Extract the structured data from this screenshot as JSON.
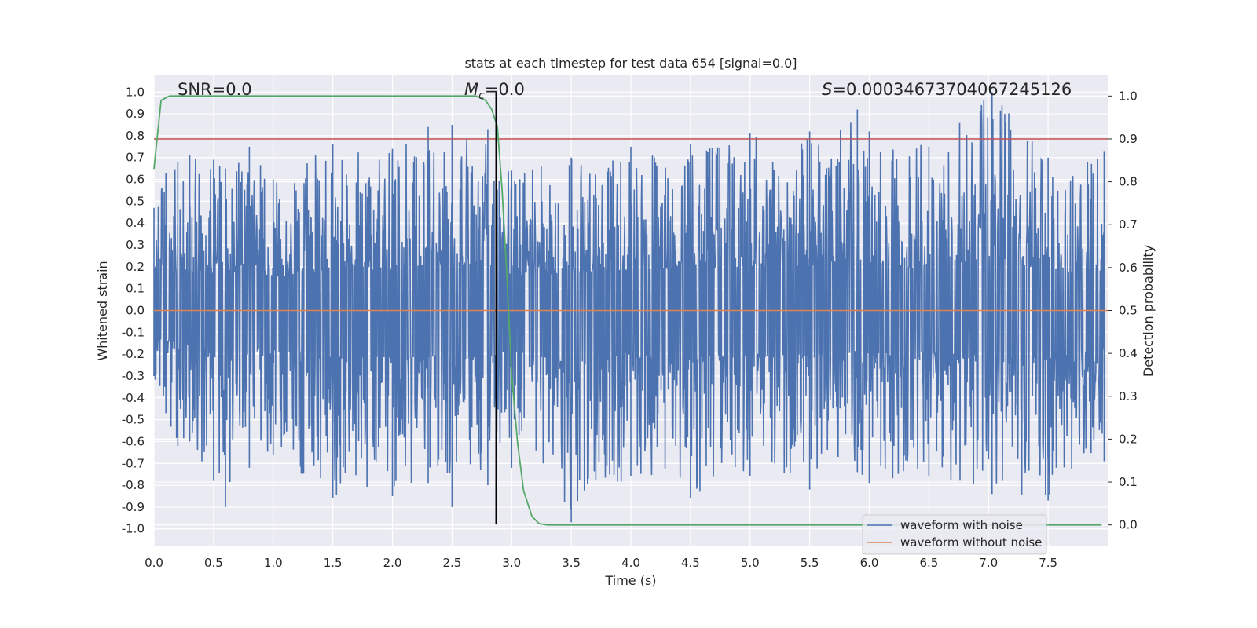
{
  "chart_data": {
    "type": "line",
    "title": "stats at each timestep for test data 654 [signal=0.0]",
    "xlabel": "Time (s)",
    "ylabel": "Whitened strain",
    "y2label": "Detection probability",
    "xlim": [
      0,
      8
    ],
    "ylim": [
      -1.08,
      1.08
    ],
    "y2lim": [
      -0.05,
      1.05
    ],
    "xticks": [
      "0.0",
      "0.5",
      "1.0",
      "1.5",
      "2.0",
      "2.5",
      "3.0",
      "3.5",
      "4.0",
      "4.5",
      "5.0",
      "5.5",
      "6.0",
      "6.5",
      "7.0",
      "7.5"
    ],
    "yticks": [
      "-1.0",
      "-0.9",
      "-0.8",
      "-0.7",
      "-0.6",
      "-0.5",
      "-0.4",
      "-0.3",
      "-0.2",
      "-0.1",
      "0.0",
      "0.1",
      "0.2",
      "0.3",
      "0.4",
      "0.5",
      "0.6",
      "0.7",
      "0.8",
      "0.9",
      "1.0"
    ],
    "y2ticks": [
      "0.0",
      "0.1",
      "0.2",
      "0.3",
      "0.4",
      "0.5",
      "0.6",
      "0.7",
      "0.8",
      "0.9",
      "1.0"
    ],
    "grid": true,
    "legend_position": "lower-right",
    "annotations": {
      "snr": "SNR=0.0",
      "mc_symbol": "M",
      "mc_sub": "c",
      "mc_value": "=0.0",
      "s_symbol": "S",
      "s_value": "=0.00034673704067245126"
    },
    "series": [
      {
        "name": "waveform with noise",
        "axis": "left",
        "color": "#4c72b0",
        "description_kind": "noise",
        "envelope_points": [
          [
            0.0,
            0.47,
            -0.3
          ],
          [
            0.1,
            0.63,
            -0.47
          ],
          [
            0.2,
            0.68,
            -0.62
          ],
          [
            0.3,
            0.71,
            -0.6
          ],
          [
            0.5,
            0.69,
            -0.78
          ],
          [
            0.6,
            0.65,
            -0.9
          ],
          [
            0.8,
            0.75,
            -0.72
          ],
          [
            1.0,
            0.6,
            -0.66
          ],
          [
            1.5,
            0.76,
            -0.86
          ],
          [
            2.0,
            0.74,
            -0.85
          ],
          [
            2.3,
            0.84,
            -0.79
          ],
          [
            2.5,
            0.85,
            -0.9
          ],
          [
            2.8,
            0.83,
            -0.8
          ],
          [
            3.0,
            0.64,
            -0.72
          ],
          [
            3.5,
            0.7,
            -0.97
          ],
          [
            4.0,
            0.75,
            -0.76
          ],
          [
            4.5,
            0.76,
            -0.86
          ],
          [
            5.0,
            0.81,
            -0.76
          ],
          [
            5.5,
            0.82,
            -0.82
          ],
          [
            5.9,
            0.92,
            -0.74
          ],
          [
            6.0,
            0.82,
            -0.79
          ],
          [
            6.5,
            0.75,
            -0.76
          ],
          [
            7.03,
            1.0,
            -0.84
          ],
          [
            7.5,
            0.7,
            -0.87
          ],
          [
            7.97,
            0.73,
            -0.69
          ]
        ]
      },
      {
        "name": "waveform without noise",
        "axis": "left",
        "color": "#dd8452",
        "x": [
          0.0,
          8.0
        ],
        "y": [
          0.0,
          0.0
        ]
      },
      {
        "name": "",
        "axis": "right",
        "color": "#55a868",
        "x": [
          0.0,
          0.06,
          0.13,
          0.5,
          1.0,
          1.5,
          2.0,
          2.5,
          2.7,
          2.78,
          2.83,
          2.88,
          2.92,
          2.96,
          3.0,
          3.05,
          3.1,
          3.17,
          3.23,
          3.3,
          3.5,
          4.0,
          5.0,
          6.0,
          7.0,
          7.95
        ],
        "y": [
          0.83,
          0.99,
          1.0,
          1.0,
          1.0,
          1.0,
          1.0,
          1.0,
          1.0,
          0.99,
          0.97,
          0.93,
          0.78,
          0.58,
          0.35,
          0.19,
          0.08,
          0.02,
          0.003,
          0.0,
          0.0,
          0.0,
          0.0,
          0.0,
          0.0,
          0.0
        ]
      }
    ],
    "threshold_line": {
      "axis": "right",
      "y": 0.9,
      "color": "#c44e52"
    },
    "marker_line": {
      "axis": "left",
      "x": 2.87,
      "y_from": -0.98,
      "y_to": 1.0,
      "color": "#000000"
    }
  }
}
